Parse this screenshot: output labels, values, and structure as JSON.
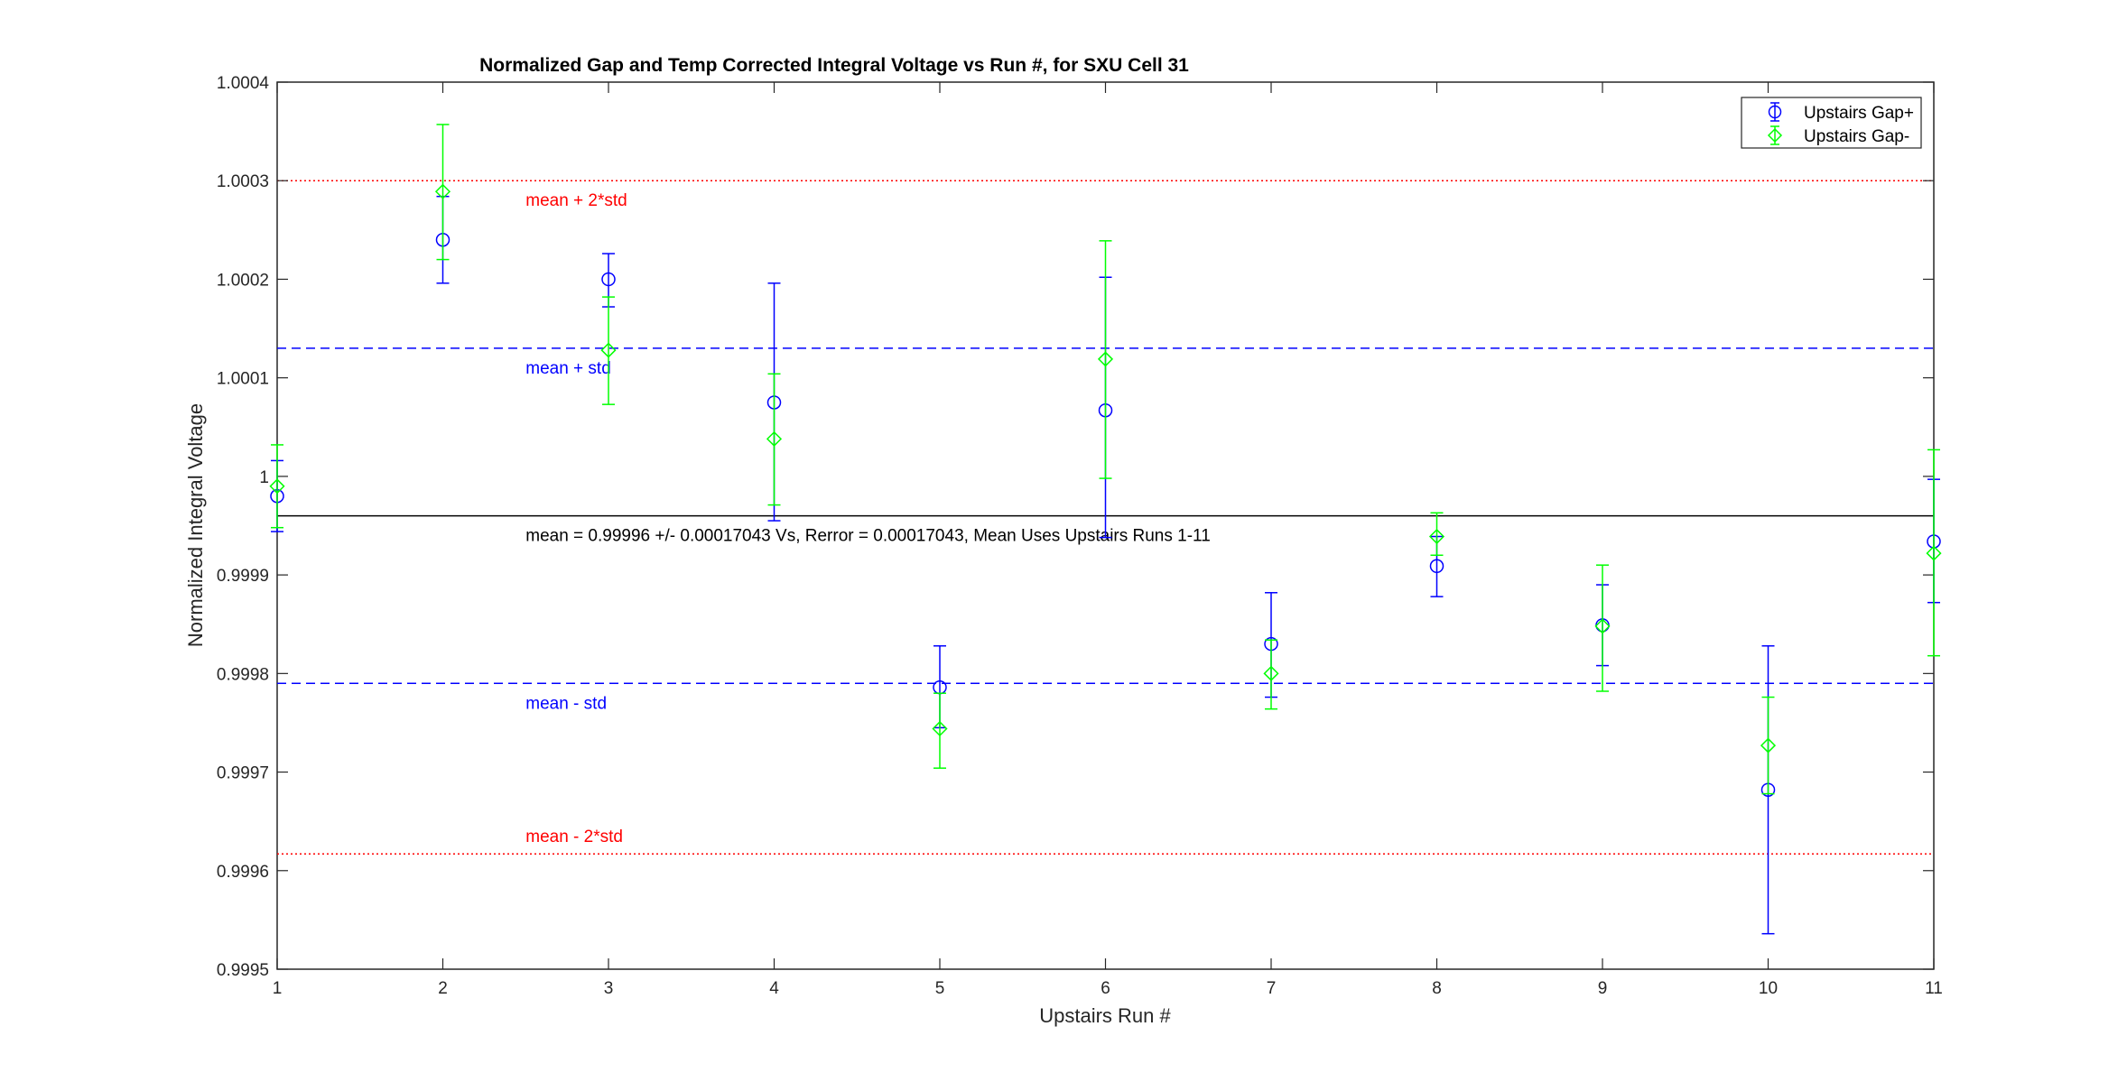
{
  "chart_data": {
    "type": "scatter",
    "title": "Normalized Gap and Temp Corrected Integral Voltage vs Run #, for SXU Cell 31",
    "xlabel": "Upstairs Run #",
    "ylabel": "Normalized Integral Voltage",
    "xlim": [
      1,
      11
    ],
    "ylim": [
      0.9995,
      1.0004
    ],
    "x_ticks": [
      1,
      2,
      3,
      4,
      5,
      6,
      7,
      8,
      9,
      10,
      11
    ],
    "x_tick_labels": [
      "1",
      "2",
      "3",
      "4",
      "5",
      "6",
      "7",
      "8",
      "9",
      "10",
      "11"
    ],
    "y_ticks": [
      0.9995,
      0.9996,
      0.9997,
      0.9998,
      0.9999,
      1.0,
      1.0001,
      1.0002,
      1.0003,
      1.0004
    ],
    "y_tick_labels": [
      "0.9995",
      "0.9996",
      "0.9997",
      "0.9998",
      "0.9999",
      "1",
      "1.0001",
      "1.0002",
      "1.0003",
      "1.0004"
    ],
    "grid": false,
    "legend": {
      "location": "top-right",
      "entries": [
        "Upstairs Gap+",
        "Upstairs Gap-"
      ]
    },
    "series": [
      {
        "name": "Upstairs Gap+",
        "color": "#0000ff",
        "marker": "circle",
        "x": [
          1,
          2,
          3,
          4,
          5,
          6,
          7,
          8,
          9,
          10,
          11
        ],
        "y": [
          0.99998,
          1.00024,
          1.0002,
          1.000075,
          0.999786,
          1.000067,
          0.99983,
          0.999909,
          0.999849,
          0.999682,
          0.999934
        ],
        "err_low": [
          0.999944,
          1.000196,
          1.000172,
          0.999955,
          0.999745,
          0.999938,
          0.999776,
          0.999878,
          0.999808,
          0.999536,
          0.999872
        ],
        "err_high": [
          1.000016,
          1.000284,
          1.000226,
          1.000196,
          0.999828,
          1.000202,
          0.999882,
          0.999939,
          0.99989,
          0.999828,
          0.999997
        ]
      },
      {
        "name": "Upstairs Gap-",
        "color": "#00ff00",
        "marker": "diamond",
        "x": [
          1,
          2,
          3,
          4,
          5,
          6,
          7,
          8,
          9,
          10,
          11
        ],
        "y": [
          0.99999,
          1.000289,
          1.000128,
          1.000038,
          0.999744,
          1.000119,
          0.9998,
          0.999939,
          0.999848,
          0.999727,
          0.999922
        ],
        "err_low": [
          0.999948,
          1.00022,
          1.000073,
          0.999971,
          0.999704,
          0.999998,
          0.999764,
          0.99992,
          0.999782,
          0.999678,
          0.999818
        ],
        "err_high": [
          1.000032,
          1.000357,
          1.000182,
          1.000104,
          0.99978,
          1.000239,
          0.999834,
          0.999963,
          0.99991,
          0.999776,
          1.000027
        ]
      }
    ],
    "reference_lines": [
      {
        "name": "mean",
        "y": 0.99996,
        "color": "#000000",
        "style": "solid",
        "label": "mean = 0.99996 +/- 0.00017043 Vs, Rerror = 0.00017043, Mean Uses Upstairs Runs 1-11",
        "label_color": "#000000",
        "label_x": 2.5,
        "label_pos": "below"
      },
      {
        "name": "mean + 2*std",
        "y": 1.0003,
        "color": "#ff0000",
        "style": "dotted",
        "label": "mean + 2*std",
        "label_color": "#ff0000",
        "label_x": 2.5,
        "label_pos": "below"
      },
      {
        "name": "mean + std",
        "y": 1.00013,
        "color": "#0000ff",
        "style": "dashed",
        "label": "mean + std",
        "label_color": "#0000ff",
        "label_x": 2.5,
        "label_pos": "below"
      },
      {
        "name": "mean - std",
        "y": 0.99979,
        "color": "#0000ff",
        "style": "dashed",
        "label": "mean - std",
        "label_color": "#0000ff",
        "label_x": 2.5,
        "label_pos": "below"
      },
      {
        "name": "mean - 2*std",
        "y": 0.999617,
        "color": "#ff0000",
        "style": "dotted",
        "label": "mean - 2*std",
        "label_color": "#ff0000",
        "label_x": 2.5,
        "label_pos": "above"
      }
    ]
  }
}
